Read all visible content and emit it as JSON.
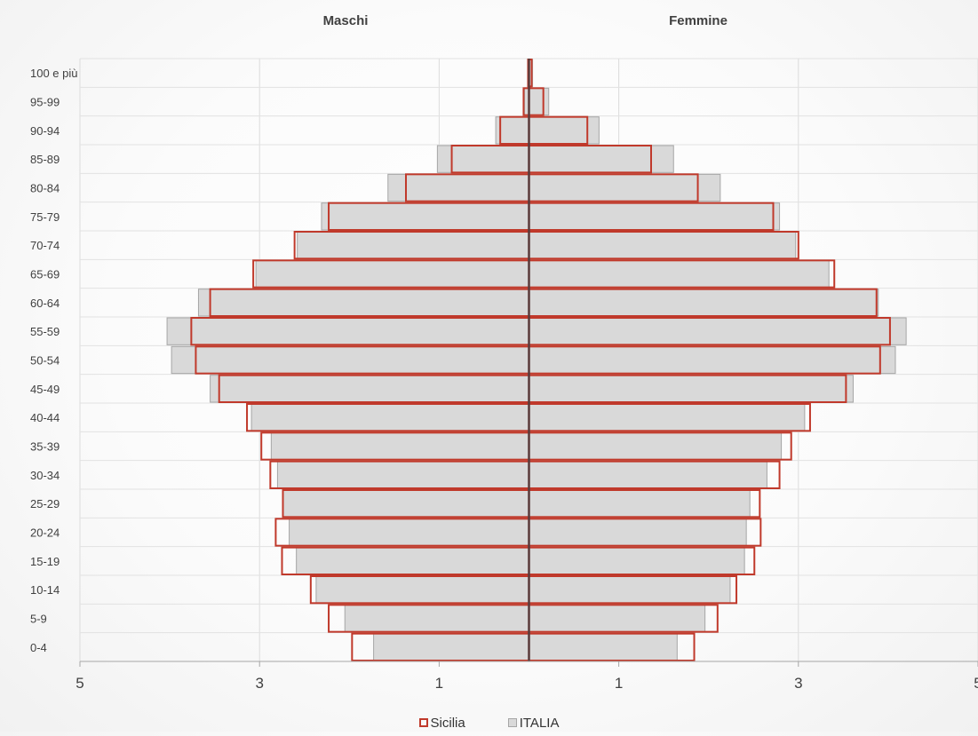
{
  "chart_data": {
    "type": "bar",
    "orientation": "horizontal-pyramid",
    "headers": {
      "left": "Maschi",
      "right": "Femmine"
    },
    "categories": [
      "100  e più",
      "95-99",
      "90-94",
      "85-89",
      "80-84",
      "75-79",
      "70-74",
      "65-69",
      "60-64",
      "55-59",
      "50-54",
      "45-49",
      "40-44",
      "35-39",
      "30-34",
      "25-29",
      "20-24",
      "15-19",
      "10-14",
      "5-9",
      "0-4"
    ],
    "x_ticks": [
      "5",
      "3",
      "1",
      "1",
      "3",
      "5"
    ],
    "xlim": [
      -5,
      5
    ],
    "grid": true,
    "series": [
      {
        "name": "ITALIA",
        "color": "#d9d9d9",
        "border": "#a6a6a6",
        "maschi": [
          0.01,
          0.05,
          0.37,
          1.02,
          1.57,
          2.31,
          2.58,
          3.04,
          3.68,
          4.03,
          3.98,
          3.55,
          3.09,
          2.87,
          2.8,
          2.74,
          2.67,
          2.59,
          2.37,
          2.05,
          1.73
        ],
        "femmine": [
          0.04,
          0.22,
          0.78,
          1.61,
          2.13,
          2.79,
          2.97,
          3.34,
          3.89,
          4.2,
          4.08,
          3.61,
          3.07,
          2.81,
          2.65,
          2.46,
          2.42,
          2.4,
          2.24,
          1.96,
          1.65
        ]
      },
      {
        "name": "Sicilia",
        "color": "#c0392b",
        "maschi": [
          0.01,
          0.06,
          0.32,
          0.86,
          1.37,
          2.23,
          2.61,
          3.07,
          3.55,
          3.76,
          3.71,
          3.45,
          3.14,
          2.98,
          2.88,
          2.74,
          2.82,
          2.75,
          2.43,
          2.23,
          1.97
        ],
        "femmine": [
          0.03,
          0.16,
          0.65,
          1.36,
          1.88,
          2.72,
          3.0,
          3.4,
          3.87,
          4.02,
          3.91,
          3.53,
          3.13,
          2.92,
          2.79,
          2.57,
          2.58,
          2.51,
          2.31,
          2.1,
          1.84
        ]
      }
    ],
    "legend": {
      "position": "bottom",
      "entries": [
        "Sicilia",
        "ITALIA"
      ]
    }
  }
}
